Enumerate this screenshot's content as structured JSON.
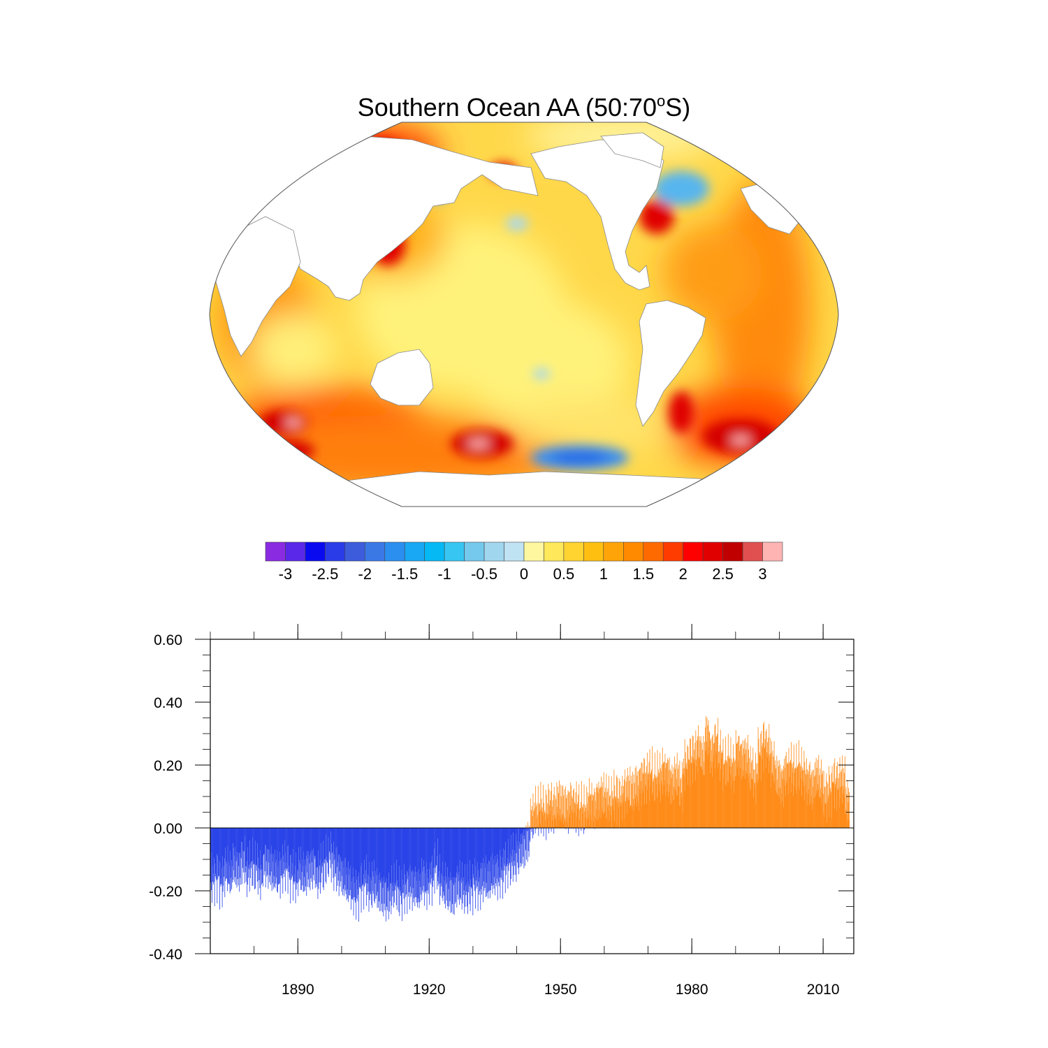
{
  "title": {
    "prefix": "Southern Ocean AA (50:70",
    "degree": "o",
    "suffix": "S)"
  },
  "map": {
    "projection": "robinson",
    "land_color": "#ffffff",
    "ocean_base_color": "#fdd835",
    "coastline_color": "#999999"
  },
  "colorbar": {
    "colors": [
      "#8a2be2",
      "#5a28e8",
      "#0a0af0",
      "#2a3ce8",
      "#3c5cdc",
      "#3a78e6",
      "#2b8ff0",
      "#18a8f4",
      "#05b9f5",
      "#37c6f2",
      "#74c9ed",
      "#a1d6ef",
      "#bfe3f3",
      "#fff6a0",
      "#ffe85a",
      "#ffd330",
      "#ffbf10",
      "#ffa408",
      "#ff8a00",
      "#ff6a00",
      "#ff3c00",
      "#ff0000",
      "#e00000",
      "#c00000",
      "#e05050",
      "#ffb4b4"
    ],
    "tick_labels": [
      "-3",
      "-2.5",
      "-2",
      "-1.5",
      "-1",
      "-0.5",
      "0",
      "0.5",
      "1",
      "1.5",
      "2",
      "2.5",
      "3"
    ]
  },
  "chart_data": {
    "type": "bar",
    "title": "",
    "xlabel": "",
    "ylabel": "",
    "xlim": [
      1870,
      2017
    ],
    "ylim": [
      -0.4,
      0.6
    ],
    "x_ticks": [
      1890,
      1920,
      1950,
      1980,
      2010
    ],
    "y_ticks": [
      -0.4,
      -0.2,
      0.0,
      0.2,
      0.4,
      0.6
    ],
    "y_tick_labels": [
      "-0.40",
      "-0.20",
      "0.00",
      "0.20",
      "0.40",
      "0.60"
    ],
    "positive_color": "#ff8c1a",
    "negative_color": "#2a44e8",
    "annual": {
      "years": [
        1870,
        1871,
        1872,
        1873,
        1874,
        1875,
        1876,
        1877,
        1878,
        1879,
        1880,
        1881,
        1882,
        1883,
        1884,
        1885,
        1886,
        1887,
        1888,
        1889,
        1890,
        1891,
        1892,
        1893,
        1894,
        1895,
        1896,
        1897,
        1898,
        1899,
        1900,
        1901,
        1902,
        1903,
        1904,
        1905,
        1906,
        1907,
        1908,
        1909,
        1910,
        1911,
        1912,
        1913,
        1914,
        1915,
        1916,
        1917,
        1918,
        1919,
        1920,
        1921,
        1922,
        1923,
        1924,
        1925,
        1926,
        1927,
        1928,
        1929,
        1930,
        1931,
        1932,
        1933,
        1934,
        1935,
        1936,
        1937,
        1938,
        1939,
        1940,
        1941,
        1942,
        1943,
        1944,
        1945,
        1946,
        1947,
        1948,
        1949,
        1950,
        1951,
        1952,
        1953,
        1954,
        1955,
        1956,
        1957,
        1958,
        1959,
        1960,
        1961,
        1962,
        1963,
        1964,
        1965,
        1966,
        1967,
        1968,
        1969,
        1970,
        1971,
        1972,
        1973,
        1974,
        1975,
        1976,
        1977,
        1978,
        1979,
        1980,
        1981,
        1982,
        1983,
        1984,
        1985,
        1986,
        1987,
        1988,
        1989,
        1990,
        1991,
        1992,
        1993,
        1994,
        1995,
        1996,
        1997,
        1998,
        1999,
        2000,
        2001,
        2002,
        2003,
        2004,
        2005,
        2006,
        2007,
        2008,
        2009,
        2010,
        2011,
        2012,
        2013,
        2014,
        2015
      ],
      "values": [
        -0.16,
        -0.15,
        -0.17,
        -0.14,
        -0.15,
        -0.12,
        -0.13,
        -0.1,
        -0.14,
        -0.12,
        -0.13,
        -0.15,
        -0.11,
        -0.12,
        -0.14,
        -0.15,
        -0.13,
        -0.12,
        -0.15,
        -0.16,
        -0.14,
        -0.15,
        -0.13,
        -0.12,
        -0.15,
        -0.13,
        -0.11,
        -0.09,
        -0.12,
        -0.14,
        -0.16,
        -0.18,
        -0.2,
        -0.21,
        -0.18,
        -0.17,
        -0.19,
        -0.18,
        -0.2,
        -0.21,
        -0.22,
        -0.2,
        -0.19,
        -0.21,
        -0.19,
        -0.18,
        -0.19,
        -0.2,
        -0.17,
        -0.18,
        -0.16,
        -0.12,
        -0.17,
        -0.19,
        -0.2,
        -0.21,
        -0.18,
        -0.19,
        -0.2,
        -0.19,
        -0.17,
        -0.18,
        -0.16,
        -0.17,
        -0.15,
        -0.15,
        -0.14,
        -0.12,
        -0.11,
        -0.1,
        -0.08,
        -0.06,
        -0.04,
        0.03,
        0.05,
        0.06,
        0.05,
        0.07,
        0.06,
        0.08,
        0.07,
        0.06,
        0.08,
        0.07,
        0.06,
        0.05,
        0.08,
        0.07,
        0.09,
        0.1,
        0.09,
        0.08,
        0.1,
        0.09,
        0.11,
        0.12,
        0.11,
        0.13,
        0.15,
        0.16,
        0.17,
        0.15,
        0.16,
        0.18,
        0.17,
        0.14,
        0.16,
        0.13,
        0.2,
        0.22,
        0.23,
        0.25,
        0.22,
        0.29,
        0.24,
        0.27,
        0.23,
        0.2,
        0.21,
        0.19,
        0.24,
        0.22,
        0.22,
        0.18,
        0.16,
        0.24,
        0.27,
        0.25,
        0.2,
        0.16,
        0.14,
        0.18,
        0.19,
        0.18,
        0.19,
        0.17,
        0.15,
        0.13,
        0.16,
        0.14,
        0.1,
        0.12,
        0.15,
        0.14,
        0.15,
        0.08
      ]
    }
  }
}
